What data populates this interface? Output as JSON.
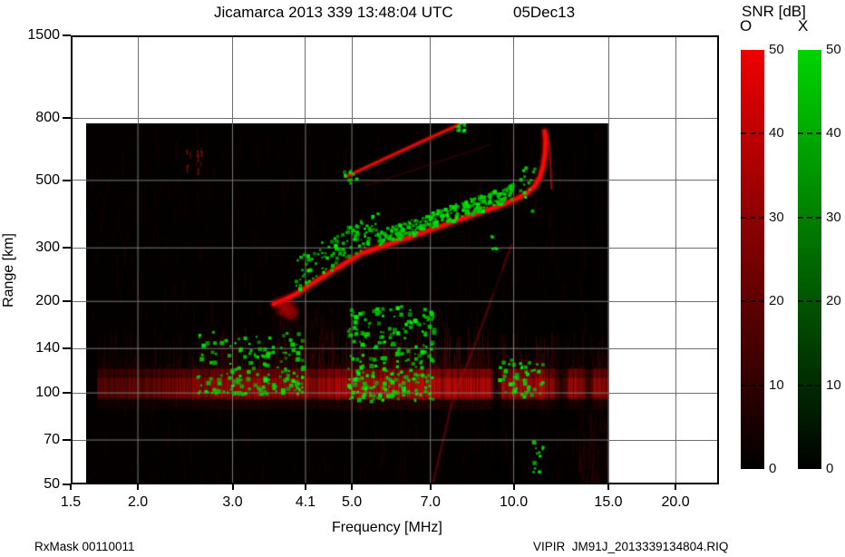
{
  "header": {
    "title": "Jicamarca 2013 339 13:48:04 UTC",
    "date": "05Dec13"
  },
  "footer": {
    "rx_mask": "RxMask 00110011",
    "file": "VIPIR  JM91J_2013339134804.RIQ"
  },
  "colorbar": {
    "title": "SNR [dB]",
    "tick_values": [
      0,
      10,
      20,
      30,
      40,
      50
    ],
    "tick_labels": [
      "0",
      "10",
      "20",
      "30",
      "40",
      "50"
    ],
    "bars": [
      {
        "label": "O",
        "color_top": "#ee0000",
        "color_bottom": "#000000"
      },
      {
        "label": "X",
        "color_top": "#00d400",
        "color_bottom": "#000000"
      }
    ]
  },
  "chart_data": {
    "type": "heatmap",
    "title": "Jicamarca 2013 339 13:48:04 UTC 05Dec13",
    "xlabel": "Frequency [MHz]",
    "ylabel": "Range [km]",
    "x_scale": "log",
    "y_scale": "log",
    "x_tick_values": [
      1.5,
      2.0,
      3.0,
      4.1,
      5.0,
      7.0,
      10.0,
      15.0,
      20.0
    ],
    "x_tick_labels": [
      "1.5",
      "2.0",
      "3.0",
      "4.1",
      "5.0",
      "7.0",
      "10.0",
      "15.0",
      "20.0"
    ],
    "y_tick_values": [
      50,
      70,
      100,
      140,
      200,
      300,
      500,
      800,
      1500
    ],
    "y_tick_labels": [
      "50",
      "70",
      "100",
      "140",
      "200",
      "300",
      "500",
      "800",
      "1500"
    ],
    "x_range_mhz": [
      1.5,
      24.5
    ],
    "y_range_km": [
      50,
      1500
    ],
    "data_extent": {
      "freq_mhz": [
        1.62,
        15.0
      ],
      "range_km": [
        50,
        770
      ]
    },
    "snr_scale_db": [
      0,
      50
    ],
    "series": {
      "f_layer_o_trace": [
        [
          3.58,
          196
        ],
        [
          3.75,
          203
        ],
        [
          3.95,
          212
        ],
        [
          4.2,
          228
        ],
        [
          4.6,
          252
        ],
        [
          5.2,
          287
        ],
        [
          5.8,
          307
        ],
        [
          6.4,
          325
        ],
        [
          7.1,
          347
        ],
        [
          7.7,
          365
        ],
        [
          8.5,
          388
        ],
        [
          9.4,
          412
        ],
        [
          10.1,
          434
        ],
        [
          10.6,
          455
        ],
        [
          10.95,
          480
        ],
        [
          11.2,
          515
        ],
        [
          11.35,
          560
        ],
        [
          11.44,
          620
        ],
        [
          11.46,
          680
        ],
        [
          11.42,
          725
        ]
      ],
      "cusp_second_branch": [
        [
          11.75,
          470
        ],
        [
          11.72,
          550
        ],
        [
          11.65,
          640
        ],
        [
          11.56,
          705
        ]
      ],
      "second_hop_trace": [
        [
          4.88,
          515
        ],
        [
          6.3,
          635
        ],
        [
          8.1,
          778
        ]
      ],
      "second_hop_faint": [
        [
          5.3,
          480
        ],
        [
          9.0,
          655
        ]
      ],
      "oblique_trace": [
        [
          9.9,
          307
        ],
        [
          8.34,
          134
        ],
        [
          7.72,
          97
        ],
        [
          7.07,
          50
        ]
      ],
      "x_mode_band": {
        "f": [
          3.9,
          9.9
        ],
        "range_factor": [
          1.02,
          1.32
        ],
        "count": 420
      },
      "e_band": {
        "range_core_km": [
          95,
          120
        ],
        "range_tail_km": [
          120,
          165
        ],
        "brightness_vs_freq": [
          [
            1.62,
            0.3
          ],
          [
            2.0,
            0.45
          ],
          [
            2.4,
            0.55
          ],
          [
            3.0,
            0.8
          ],
          [
            3.6,
            0.7
          ],
          [
            4.4,
            0.75
          ],
          [
            5.0,
            0.95
          ],
          [
            7.0,
            0.95
          ],
          [
            9.0,
            0.9
          ],
          [
            9.2,
            0.15
          ],
          [
            9.5,
            0.9
          ],
          [
            11.5,
            0.85
          ],
          [
            12.2,
            0.3
          ],
          [
            12.6,
            0.8
          ],
          [
            13.3,
            0.75
          ],
          [
            13.7,
            0.35
          ],
          [
            14.0,
            0.7
          ],
          [
            15.0,
            0.6
          ]
        ]
      },
      "sporadic_green_clusters": [
        {
          "f": [
            2.55,
            4.05
          ],
          "r": [
            100,
            160
          ],
          "count": 170
        },
        {
          "f": [
            4.9,
            7.05
          ],
          "r": [
            95,
            195
          ],
          "count": 260
        },
        {
          "f": [
            9.3,
            11.3
          ],
          "r": [
            98,
            130
          ],
          "count": 50
        },
        {
          "f": [
            10.8,
            11.5
          ],
          "r": [
            55,
            70
          ],
          "count": 12
        }
      ],
      "cusp_greens": {
        "f": [
          10.2,
          10.9
        ],
        "r": [
          400,
          560
        ],
        "count": 14
      },
      "hop_greens": [
        {
          "f": [
            4.8,
            5.15
          ],
          "r": [
            490,
            545
          ],
          "count": 10
        },
        {
          "f": [
            7.7,
            8.2
          ],
          "r": [
            730,
            778
          ],
          "count": 12
        }
      ],
      "trace_mid_greens": {
        "f": [
          8.9,
          9.4
        ],
        "r": [
          300,
          340
        ],
        "count": 6
      },
      "rfi_nulls": [
        {
          "f": [
            9.17,
            9.5
          ],
          "alpha": 0.55
        },
        {
          "f": [
            13.6,
            14.05
          ],
          "alpha": 0.35
        },
        {
          "f": [
            12.15,
            12.6
          ],
          "alpha": 0.5,
          "band_only": true
        }
      ],
      "red_dashes": {
        "f": [
          2.46,
          2.62
        ],
        "r": [
          540,
          670
        ],
        "count": 12
      },
      "sub_band_streaks": {
        "f": [
          13.2,
          14.9
        ],
        "r": [
          50,
          95
        ],
        "count": 70
      },
      "spread_below_trace": {
        "f": [
          3.55,
          4.6
        ],
        "r": [
          134,
          203
        ],
        "count": 90
      }
    }
  }
}
